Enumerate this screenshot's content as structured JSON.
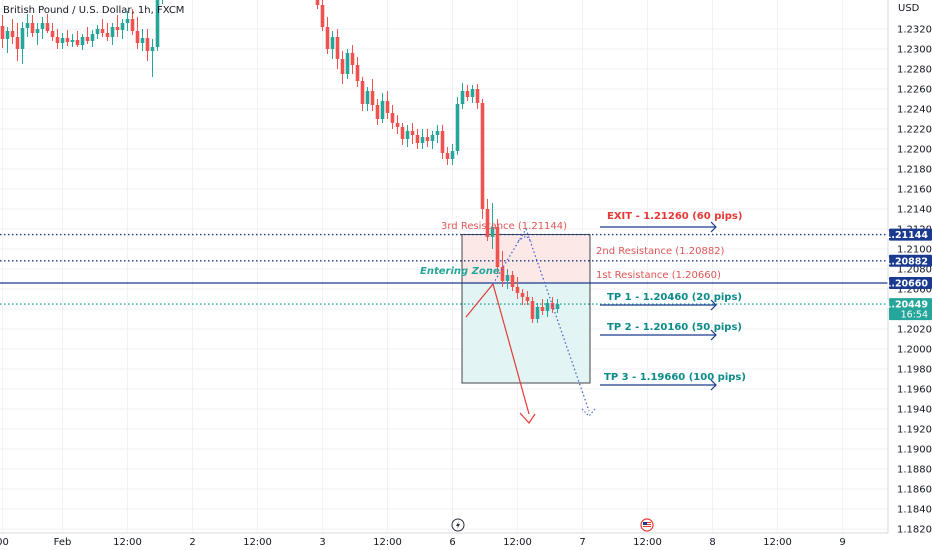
{
  "header": {
    "title": "British Pound / U.S. Dollar, 1h, FXCM",
    "currency": "USD"
  },
  "chart_data": {
    "type": "candlestick",
    "instrument": "British Pound / U.S. Dollar",
    "interval": "1h",
    "source": "FXCM",
    "ylim": [
      1.1812,
      1.2349
    ],
    "y_ticks": [
      "1.23200",
      "1.23000",
      "1.22800",
      "1.22600",
      "1.22400",
      "1.22200",
      "1.22000",
      "1.21800",
      "1.21600",
      "1.21400",
      "1.21200",
      "1.21000",
      "1.20800",
      "1.20600",
      "1.20400",
      "1.20200",
      "1.20000",
      "1.19800",
      "1.19600",
      "1.19400",
      "1.19200",
      "1.19000",
      "1.18800",
      "1.18600",
      "1.18400",
      "1.18200"
    ],
    "x_ticks": [
      {
        "label": "00",
        "slot": 0
      },
      {
        "label": "Feb",
        "slot": 12
      },
      {
        "label": "12:00",
        "slot": 25
      },
      {
        "label": "2",
        "slot": 38
      },
      {
        "label": "12:00",
        "slot": 51
      },
      {
        "label": "3",
        "slot": 64
      },
      {
        "label": "12:00",
        "slot": 77
      },
      {
        "label": "6",
        "slot": 90
      },
      {
        "label": "12:00",
        "slot": 103
      },
      {
        "label": "7",
        "slot": 116
      },
      {
        "label": "12:00",
        "slot": 129
      },
      {
        "label": "8",
        "slot": 142
      },
      {
        "label": "12:00",
        "slot": 155
      },
      {
        "label": "9",
        "slot": 168
      }
    ],
    "candles": [
      {
        "o": 1.2323,
        "h": 1.2334,
        "l": 1.2301,
        "c": 1.231
      },
      {
        "o": 1.231,
        "h": 1.2322,
        "l": 1.2296,
        "c": 1.2318
      },
      {
        "o": 1.2318,
        "h": 1.233,
        "l": 1.2305,
        "c": 1.2312
      },
      {
        "o": 1.2312,
        "h": 1.2326,
        "l": 1.2288,
        "c": 1.23
      },
      {
        "o": 1.23,
        "h": 1.2327,
        "l": 1.2285,
        "c": 1.2321
      },
      {
        "o": 1.2321,
        "h": 1.2335,
        "l": 1.2312,
        "c": 1.2326
      },
      {
        "o": 1.2326,
        "h": 1.2334,
        "l": 1.2312,
        "c": 1.2316
      },
      {
        "o": 1.2316,
        "h": 1.2326,
        "l": 1.2304,
        "c": 1.232
      },
      {
        "o": 1.232,
        "h": 1.2332,
        "l": 1.231,
        "c": 1.2326
      },
      {
        "o": 1.2326,
        "h": 1.2335,
        "l": 1.2316,
        "c": 1.2318
      },
      {
        "o": 1.2318,
        "h": 1.2326,
        "l": 1.2308,
        "c": 1.2312
      },
      {
        "o": 1.2312,
        "h": 1.232,
        "l": 1.23,
        "c": 1.2306
      },
      {
        "o": 1.2306,
        "h": 1.2316,
        "l": 1.23,
        "c": 1.2311
      },
      {
        "o": 1.2311,
        "h": 1.2319,
        "l": 1.2303,
        "c": 1.2307
      },
      {
        "o": 1.2307,
        "h": 1.2315,
        "l": 1.2302,
        "c": 1.2309
      },
      {
        "o": 1.2309,
        "h": 1.2318,
        "l": 1.2302,
        "c": 1.2304
      },
      {
        "o": 1.2304,
        "h": 1.2315,
        "l": 1.2299,
        "c": 1.2312
      },
      {
        "o": 1.2312,
        "h": 1.2322,
        "l": 1.2305,
        "c": 1.2308
      },
      {
        "o": 1.2308,
        "h": 1.2319,
        "l": 1.2302,
        "c": 1.2315
      },
      {
        "o": 1.2315,
        "h": 1.2324,
        "l": 1.231,
        "c": 1.232
      },
      {
        "o": 1.232,
        "h": 1.233,
        "l": 1.2312,
        "c": 1.2316
      },
      {
        "o": 1.2316,
        "h": 1.2326,
        "l": 1.2308,
        "c": 1.2312
      },
      {
        "o": 1.2312,
        "h": 1.2326,
        "l": 1.2304,
        "c": 1.2322
      },
      {
        "o": 1.2322,
        "h": 1.2334,
        "l": 1.2312,
        "c": 1.2319
      },
      {
        "o": 1.2319,
        "h": 1.233,
        "l": 1.231,
        "c": 1.2326
      },
      {
        "o": 1.2326,
        "h": 1.2338,
        "l": 1.2318,
        "c": 1.233
      },
      {
        "o": 1.233,
        "h": 1.234,
        "l": 1.2314,
        "c": 1.2318
      },
      {
        "o": 1.2318,
        "h": 1.2332,
        "l": 1.23,
        "c": 1.2306
      },
      {
        "o": 1.2306,
        "h": 1.232,
        "l": 1.2298,
        "c": 1.2311
      },
      {
        "o": 1.2311,
        "h": 1.232,
        "l": 1.2288,
        "c": 1.2298
      },
      {
        "o": 1.2298,
        "h": 1.231,
        "l": 1.2272,
        "c": 1.2302
      },
      {
        "o": 1.2302,
        "h": 1.236,
        "l": 1.2298,
        "c": 1.2354
      },
      {
        "o": 1.2354,
        "h": 1.2365,
        "l": 1.2345,
        "c": 1.236
      },
      null,
      null,
      null,
      null,
      null,
      null,
      null,
      null,
      null,
      null,
      null,
      null,
      null,
      null,
      null,
      null,
      null,
      null,
      null,
      null,
      null,
      null,
      null,
      null,
      null,
      null,
      null,
      null,
      null,
      null,
      {
        "o": 1.2352,
        "h": 1.236,
        "l": 1.234,
        "c": 1.2344
      },
      {
        "o": 1.2344,
        "h": 1.235,
        "l": 1.2318,
        "c": 1.2322
      },
      {
        "o": 1.2322,
        "h": 1.2332,
        "l": 1.2295,
        "c": 1.23
      },
      {
        "o": 1.23,
        "h": 1.2318,
        "l": 1.229,
        "c": 1.2312
      },
      {
        "o": 1.2312,
        "h": 1.232,
        "l": 1.228,
        "c": 1.229
      },
      {
        "o": 1.229,
        "h": 1.2298,
        "l": 1.2265,
        "c": 1.2275
      },
      {
        "o": 1.2275,
        "h": 1.23,
        "l": 1.227,
        "c": 1.2296
      },
      {
        "o": 1.2296,
        "h": 1.2304,
        "l": 1.2275,
        "c": 1.2284
      },
      {
        "o": 1.2284,
        "h": 1.2292,
        "l": 1.2262,
        "c": 1.2268
      },
      {
        "o": 1.2268,
        "h": 1.2272,
        "l": 1.2238,
        "c": 1.2245
      },
      {
        "o": 1.2245,
        "h": 1.2262,
        "l": 1.2238,
        "c": 1.2258
      },
      {
        "o": 1.2258,
        "h": 1.227,
        "l": 1.2238,
        "c": 1.2244
      },
      {
        "o": 1.2244,
        "h": 1.225,
        "l": 1.2224,
        "c": 1.223
      },
      {
        "o": 1.223,
        "h": 1.2256,
        "l": 1.2226,
        "c": 1.2248
      },
      {
        "o": 1.2248,
        "h": 1.2258,
        "l": 1.223,
        "c": 1.2236
      },
      {
        "o": 1.2236,
        "h": 1.2244,
        "l": 1.222,
        "c": 1.2226
      },
      {
        "o": 1.2226,
        "h": 1.2234,
        "l": 1.2215,
        "c": 1.2222
      },
      {
        "o": 1.2222,
        "h": 1.2226,
        "l": 1.2204,
        "c": 1.221
      },
      {
        "o": 1.221,
        "h": 1.2224,
        "l": 1.2202,
        "c": 1.2218
      },
      {
        "o": 1.2218,
        "h": 1.2226,
        "l": 1.2205,
        "c": 1.2214
      },
      {
        "o": 1.2214,
        "h": 1.222,
        "l": 1.22,
        "c": 1.2206
      },
      {
        "o": 1.2206,
        "h": 1.222,
        "l": 1.22,
        "c": 1.2212
      },
      {
        "o": 1.2212,
        "h": 1.222,
        "l": 1.2202,
        "c": 1.2208
      },
      {
        "o": 1.2208,
        "h": 1.2218,
        "l": 1.22,
        "c": 1.2214
      },
      {
        "o": 1.2214,
        "h": 1.2224,
        "l": 1.2206,
        "c": 1.2218
      },
      {
        "o": 1.2218,
        "h": 1.2224,
        "l": 1.219,
        "c": 1.2196
      },
      {
        "o": 1.2196,
        "h": 1.2202,
        "l": 1.2184,
        "c": 1.219
      },
      {
        "o": 1.219,
        "h": 1.2205,
        "l": 1.2184,
        "c": 1.2198
      },
      {
        "o": 1.2198,
        "h": 1.2252,
        "l": 1.2194,
        "c": 1.2245
      },
      {
        "o": 1.2245,
        "h": 1.2266,
        "l": 1.224,
        "c": 1.2258
      },
      {
        "o": 1.2258,
        "h": 1.2264,
        "l": 1.2248,
        "c": 1.2252
      },
      {
        "o": 1.2252,
        "h": 1.2264,
        "l": 1.2246,
        "c": 1.226
      },
      {
        "o": 1.226,
        "h": 1.2265,
        "l": 1.224,
        "c": 1.2246
      },
      {
        "o": 1.2246,
        "h": 1.225,
        "l": 1.213,
        "c": 1.214
      },
      {
        "o": 1.214,
        "h": 1.215,
        "l": 1.2108,
        "c": 1.2112
      },
      {
        "o": 1.2112,
        "h": 1.2146,
        "l": 1.21,
        "c": 1.2122
      },
      {
        "o": 1.2122,
        "h": 1.213,
        "l": 1.2075,
        "c": 1.2082
      },
      {
        "o": 1.2082,
        "h": 1.2098,
        "l": 1.2062,
        "c": 1.2068
      },
      {
        "o": 1.2068,
        "h": 1.208,
        "l": 1.206,
        "c": 1.2074
      },
      {
        "o": 1.2074,
        "h": 1.2078,
        "l": 1.2058,
        "c": 1.2062
      },
      {
        "o": 1.2062,
        "h": 1.2072,
        "l": 1.205,
        "c": 1.2056
      },
      {
        "o": 1.2056,
        "h": 1.206,
        "l": 1.2044,
        "c": 1.2052
      },
      {
        "o": 1.2052,
        "h": 1.2058,
        "l": 1.2044,
        "c": 1.2048
      },
      {
        "o": 1.2048,
        "h": 1.2052,
        "l": 1.2026,
        "c": 1.203
      },
      {
        "o": 1.203,
        "h": 1.2046,
        "l": 1.2026,
        "c": 1.2042
      },
      {
        "o": 1.2042,
        "h": 1.205,
        "l": 1.2034,
        "c": 1.2038
      },
      {
        "o": 1.2038,
        "h": 1.205,
        "l": 1.2032,
        "c": 1.2046
      },
      {
        "o": 1.2046,
        "h": 1.2052,
        "l": 1.2036,
        "c": 1.204
      },
      {
        "o": 1.204,
        "h": 1.205,
        "l": 1.2036,
        "c": 1.2045
      }
    ],
    "up_color": "#26a69a",
    "down_color": "#ef5350",
    "level_lines": [
      {
        "price": 1.21144,
        "label": "1.21144",
        "color": "#1a3a8f",
        "style": "dotted"
      },
      {
        "price": 1.20882,
        "label": "1.20882",
        "color": "#1a3a8f",
        "style": "dotted"
      },
      {
        "price": 1.2066,
        "label": "1.20660",
        "color": "#1a3a8f",
        "style": "solid"
      },
      {
        "price": 1.20449,
        "label": "1.20449",
        "label2": "16:54",
        "color": "#26a69a",
        "style": "dotted"
      }
    ],
    "zones": {
      "risk": {
        "top": 1.21144,
        "bottom": 1.2066,
        "color": "#fde8e8"
      },
      "reward": {
        "top": 1.2066,
        "bottom": 1.1966,
        "color": "#e2f4f4"
      }
    },
    "annotations": [
      {
        "text": "EXIT - 1.21260 (60 pips)",
        "price": 1.2126,
        "color": "#e53935",
        "arrow": true
      },
      {
        "text": "3rd Resistance (1.21144)",
        "price": 1.2126,
        "color": "#e05555",
        "arrow": false
      },
      {
        "text": "2nd Resistance (1.20882)",
        "price": 1.2096,
        "color": "#e05555",
        "arrow": false
      },
      {
        "text": "1st Resistance (1.20660)",
        "price": 1.2072,
        "color": "#e05555",
        "arrow": false
      },
      {
        "text": "Entering Zone",
        "price": 1.2077,
        "color": "#26a69a",
        "arrow": false
      },
      {
        "text": "TP 1 - 1.20460 (20 pips)",
        "price": 1.2046,
        "color": "#0b8a8a",
        "arrow": true
      },
      {
        "text": "TP 2 - 1.20160 (50 pips)",
        "price": 1.2016,
        "color": "#0b8a8a",
        "arrow": true
      },
      {
        "text": "TP 3 - 1.19660 (100 pips)",
        "price": 1.1966,
        "color": "#0b8a8a",
        "arrow": true
      }
    ],
    "scenario_paths": [
      {
        "color": "#e53935",
        "style": "solid",
        "points": [
          [
            1.2032,
            1.2065
          ],
          [
            1.2065,
            1.1935
          ]
        ]
      },
      {
        "color": "#3b5ccc",
        "style": "dotted",
        "points": [
          [
            1.2065,
            1.212
          ],
          [
            1.212,
            1.1938
          ]
        ]
      }
    ],
    "grid": true
  }
}
